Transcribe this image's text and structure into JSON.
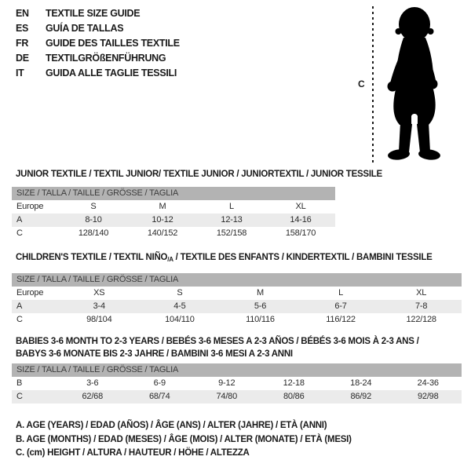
{
  "languages": {
    "items": [
      {
        "code": "EN",
        "label": "TEXTILE SIZE GUIDE"
      },
      {
        "code": "ES",
        "label": "GUÍA DE TALLAS"
      },
      {
        "code": "FR",
        "label": "GUIDE DES TAILLES TEXTILE"
      },
      {
        "code": "DE",
        "label": "TEXTILGRÖßENFÜHRUNG"
      },
      {
        "code": "IT",
        "label": "GUIDA ALLE TAGLIE TESSILI"
      }
    ]
  },
  "figure": {
    "height_label": "C"
  },
  "colors": {
    "header_bg": "#b3b3b3",
    "shaded_row_bg": "#ebebeb",
    "text": "#1a1a1a",
    "silhouette": "#000000"
  },
  "tables": [
    {
      "id": "junior",
      "title": "JUNIOR TEXTILE / TEXTIL JUNIOR/ TEXTILE JUNIOR / JUNIORTEXTIL / JUNIOR TESSILE",
      "size_header": "SIZE / TALLA / TAILLE / GRÖSSE / TAGLIA",
      "rows": [
        {
          "label": "Europe",
          "shaded": false,
          "cells": [
            "S",
            "M",
            "L",
            "XL"
          ]
        },
        {
          "label": "A",
          "shaded": true,
          "cells": [
            "8-10",
            "10-12",
            "12-13",
            "14-16"
          ]
        },
        {
          "label": "C",
          "shaded": false,
          "cells": [
            "128/140",
            "140/152",
            "152/158",
            "158/170"
          ]
        }
      ]
    },
    {
      "id": "children",
      "title_pre": "CHILDREN'S TEXTILE / TEXTIL NIÑO",
      "title_sub": "/A",
      "title_post": " / TEXTILE DES ENFANTS / KINDERTEXTIL / BAMBINI TESSILE",
      "size_header": "SIZE / TALLA / TAILLE / GRÖSSE / TAGLIA",
      "rows": [
        {
          "label": "Europe",
          "shaded": false,
          "cells": [
            "XS",
            "S",
            "M",
            "L",
            "XL"
          ]
        },
        {
          "label": "A",
          "shaded": true,
          "cells": [
            "3-4",
            "4-5",
            "5-6",
            "6-7",
            "7-8"
          ]
        },
        {
          "label": "C",
          "shaded": false,
          "cells": [
            "98/104",
            "104/110",
            "110/116",
            "116/122",
            "122/128"
          ]
        }
      ]
    },
    {
      "id": "babies",
      "title_line1": "BABIES 3-6 MONTH TO 2-3 YEARS / BEBÉS 3-6 MESES A 2-3 AÑOS / BÉBÉS 3-6 MOIS À 2-3 ANS /",
      "title_line2": "BABYS 3-6 MONATE BIS 2-3 JAHRE / BAMBINI 3-6 MESI A 2-3 ANNI",
      "size_header": "SIZE / TALLA / TAILLE / GRÖSSE / TAGLIA",
      "rows": [
        {
          "label": "B",
          "shaded": false,
          "cells": [
            "3-6",
            "6-9",
            "9-12",
            "12-18",
            "18-24",
            "24-36"
          ]
        },
        {
          "label": "C",
          "shaded": true,
          "cells": [
            "62/68",
            "68/74",
            "74/80",
            "80/86",
            "86/92",
            "92/98"
          ]
        }
      ]
    }
  ],
  "notes": {
    "line_a": "A. AGE (YEARS) / EDAD (AÑOS) / ÂGE (ANS) / ALTER (JAHRE) / ETÀ (ANNI)",
    "line_b": "B. AGE (MONTHS) / EDAD (MESES) / ÂGE (MOIS) / ALTER (MONATE) / ETÀ (MESI)",
    "line_c": "C. (cm) HEIGHT / ALTURA / HAUTEUR / HÖHE / ALTEZZA"
  }
}
